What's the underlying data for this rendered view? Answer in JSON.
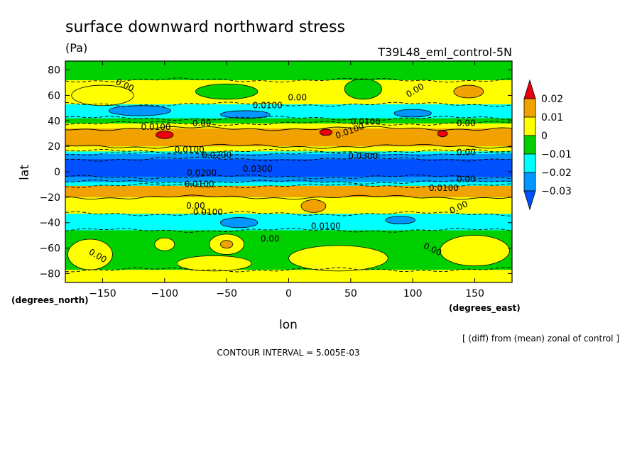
{
  "chart_data": {
    "type": "contour",
    "title": "surface downward northward stress",
    "units": "(Pa)",
    "run_label": "T39L48_eml_control-5N",
    "xlabel": "lon",
    "ylabel": "lat",
    "x_unit_label": "(degrees_east)",
    "y_unit_label": "(degrees_north)",
    "xlim": [
      -180,
      180
    ],
    "ylim": [
      -87,
      87
    ],
    "x_ticks": [
      -150,
      -100,
      -50,
      0,
      50,
      100,
      150
    ],
    "x_tick_labels": [
      "−150",
      "−100",
      "−50",
      "0",
      "50",
      "100",
      "150"
    ],
    "y_ticks": [
      -80,
      -60,
      -40,
      -20,
      0,
      20,
      40,
      60,
      80
    ],
    "y_tick_labels": [
      "−80",
      "−60",
      "−40",
      "−20",
      "0",
      "20",
      "40",
      "60",
      "80"
    ],
    "diff_note": "[ (diff) from (mean) zonal of control ]",
    "contour_interval": "CONTOUR INTERVAL = 5.005E-03",
    "colorbar": {
      "levels": [
        "0.02",
        "0.01",
        "0",
        "−0.01",
        "−0.02",
        "−0.03"
      ],
      "colors": [
        "#e8000b",
        "#f2a200",
        "#ffff00",
        "#00d000",
        "#00ffff",
        "#0096ff",
        "#0050ff"
      ]
    },
    "background_color": "#00d000",
    "bands": [
      {
        "lat_min": -87,
        "lat_max": -77,
        "value": "0",
        "color": "#ffff00"
      },
      {
        "lat_min": -77,
        "lat_max": -46,
        "value": "-0.01",
        "color": "#00d000"
      },
      {
        "lat_min": -46,
        "lat_max": -33,
        "value": "-0.02",
        "color": "#00ffff"
      },
      {
        "lat_min": -33,
        "lat_max": -20,
        "value": "0",
        "color": "#ffff00"
      },
      {
        "lat_min": -20,
        "lat_max": -11,
        "value": "0.01",
        "color": "#f2a200"
      },
      {
        "lat_min": -11,
        "lat_max": -8,
        "value": "-0.02",
        "color": "#00ffff"
      },
      {
        "lat_min": -8,
        "lat_max": -4,
        "value": "-0.03",
        "color": "#0096ff"
      },
      {
        "lat_min": -4,
        "lat_max": 10,
        "value": "-0.04",
        "color": "#0050ff"
      },
      {
        "lat_min": 10,
        "lat_max": 14,
        "value": "-0.03",
        "color": "#0096ff"
      },
      {
        "lat_min": 14,
        "lat_max": 16,
        "value": "-0.02",
        "color": "#00ffff"
      },
      {
        "lat_min": 16,
        "lat_max": 20,
        "value": "0",
        "color": "#ffff00"
      },
      {
        "lat_min": 20,
        "lat_max": 34,
        "value": "0.01",
        "color": "#f2a200"
      },
      {
        "lat_min": 34,
        "lat_max": 38,
        "value": "0",
        "color": "#ffff00"
      },
      {
        "lat_min": 38,
        "lat_max": 42,
        "value": "-0.01",
        "color": "#00d000"
      },
      {
        "lat_min": 42,
        "lat_max": 53,
        "value": "-0.02",
        "color": "#00ffff"
      },
      {
        "lat_min": 53,
        "lat_max": 72,
        "value": "0",
        "color": "#ffff00"
      },
      {
        "lat_min": 72,
        "lat_max": 87,
        "value": "-0.01",
        "color": "#00d000"
      }
    ],
    "patches": [
      {
        "lon": -100,
        "lat": 29,
        "rlon": 7,
        "rlat": 3,
        "color": "#e8000b"
      },
      {
        "lon": 30,
        "lat": 31,
        "rlon": 5,
        "rlat": 2.5,
        "color": "#e8000b"
      },
      {
        "lon": 124,
        "lat": 30,
        "rlon": 4,
        "rlat": 2.5,
        "color": "#e8000b"
      },
      {
        "lon": -50,
        "lat": -57,
        "rlon": 14,
        "rlat": 8,
        "color": "#ffff00"
      },
      {
        "lon": -50,
        "lat": -57,
        "rlon": 5,
        "rlat": 3,
        "color": "#f2a200"
      },
      {
        "lon": -100,
        "lat": -57,
        "rlon": 8,
        "rlat": 5,
        "color": "#ffff00"
      },
      {
        "lon": 150,
        "lat": -62,
        "rlon": 28,
        "rlat": 12,
        "color": "#ffff00"
      },
      {
        "lon": -160,
        "lat": -65,
        "rlon": 18,
        "rlat": 12,
        "color": "#ffff00"
      },
      {
        "lon": 40,
        "lat": -68,
        "rlon": 40,
        "rlat": 10,
        "color": "#ffff00"
      },
      {
        "lon": -60,
        "lat": -72,
        "rlon": 30,
        "rlat": 6,
        "color": "#ffff00"
      },
      {
        "lon": 20,
        "lat": -27,
        "rlon": 10,
        "rlat": 5,
        "color": "#f2a200"
      },
      {
        "lon": -120,
        "lat": 48,
        "rlon": 25,
        "rlat": 4,
        "color": "#0096ff"
      },
      {
        "lon": -35,
        "lat": 45,
        "rlon": 20,
        "rlat": 3,
        "color": "#0096ff"
      },
      {
        "lon": 100,
        "lat": 46,
        "rlon": 15,
        "rlat": 3,
        "color": "#0096ff"
      },
      {
        "lon": -150,
        "lat": 60,
        "rlon": 25,
        "rlat": 8,
        "color": "#ffff00"
      },
      {
        "lon": -50,
        "lat": 63,
        "rlon": 25,
        "rlat": 6,
        "color": "#00d000"
      },
      {
        "lon": 60,
        "lat": 65,
        "rlon": 15,
        "rlat": 8,
        "color": "#00d000"
      },
      {
        "lon": 145,
        "lat": 63,
        "rlon": 12,
        "rlat": 5,
        "color": "#f2a200"
      },
      {
        "lon": -40,
        "lat": -40,
        "rlon": 15,
        "rlat": 4,
        "color": "#0096ff"
      },
      {
        "lon": 90,
        "lat": -38,
        "rlon": 12,
        "rlat": 3,
        "color": "#0096ff"
      }
    ],
    "contour_labels": [
      {
        "text": "0.00",
        "lon": -133,
        "lat": 66,
        "angle": 25
      },
      {
        "text": "0.0100",
        "lon": -17,
        "lat": 50,
        "angle": 0
      },
      {
        "text": "0.00",
        "lon": 7,
        "lat": 56,
        "angle": 0
      },
      {
        "text": "0.00",
        "lon": 103,
        "lat": 62,
        "angle": -30
      },
      {
        "text": "0.0100",
        "lon": -107,
        "lat": 33,
        "angle": 0
      },
      {
        "text": "0.00",
        "lon": -70,
        "lat": 36,
        "angle": 0
      },
      {
        "text": "0.0100",
        "lon": 62,
        "lat": 37,
        "angle": 0
      },
      {
        "text": "0.0100",
        "lon": 50,
        "lat": 30,
        "angle": -20
      },
      {
        "text": "0.00",
        "lon": 143,
        "lat": 36,
        "angle": 0
      },
      {
        "text": "0.0100",
        "lon": -80,
        "lat": 15,
        "angle": 0
      },
      {
        "text": "0.0200",
        "lon": -58,
        "lat": 11,
        "angle": 0
      },
      {
        "text": "0.0300",
        "lon": 60,
        "lat": 10,
        "angle": 0
      },
      {
        "text": "0.00",
        "lon": 143,
        "lat": 13,
        "angle": 0
      },
      {
        "text": "0.0300",
        "lon": -25,
        "lat": 0,
        "angle": 0
      },
      {
        "text": "0.0200",
        "lon": -70,
        "lat": -3,
        "angle": 0
      },
      {
        "text": "0.0100",
        "lon": -72,
        "lat": -12,
        "angle": 0
      },
      {
        "text": "0.00",
        "lon": 143,
        "lat": -8,
        "angle": 0
      },
      {
        "text": "0.0100",
        "lon": 125,
        "lat": -15,
        "angle": 0
      },
      {
        "text": "0.00",
        "lon": -75,
        "lat": -29,
        "angle": 0
      },
      {
        "text": "0.0100",
        "lon": -65,
        "lat": -34,
        "angle": 0
      },
      {
        "text": "0.0100",
        "lon": 30,
        "lat": -45,
        "angle": 0
      },
      {
        "text": "0.00",
        "lon": 138,
        "lat": -30,
        "angle": -25
      },
      {
        "text": "0.00",
        "lon": -15,
        "lat": -55,
        "angle": 0
      },
      {
        "text": "0.00",
        "lon": 115,
        "lat": -63,
        "angle": 25
      },
      {
        "text": "0.00",
        "lon": -155,
        "lat": -68,
        "angle": 30
      }
    ]
  }
}
